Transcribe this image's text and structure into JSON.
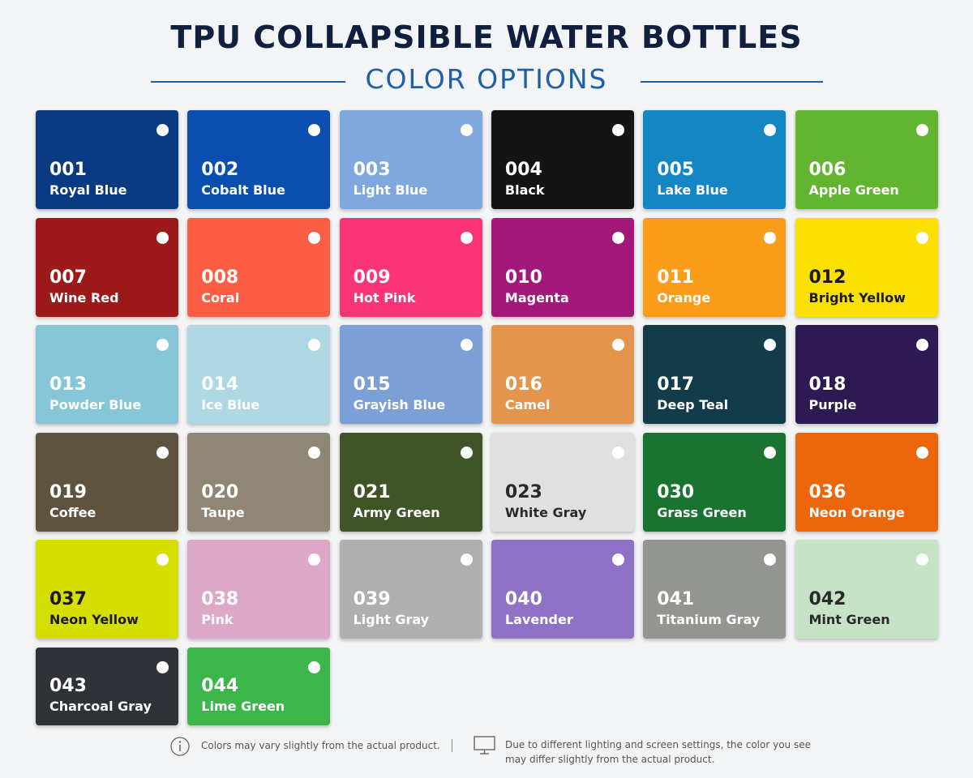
{
  "header": {
    "title": "TPU COLLAPSIBLE WATER BOTTLES",
    "subtitle": "COLOR OPTIONS"
  },
  "swatches": [
    {
      "code": "001",
      "name": "Royal Blue",
      "color": "#0a3a82",
      "text_color": "#ffffff"
    },
    {
      "code": "002",
      "name": "Cobalt Blue",
      "color": "#0a4fb0",
      "text_color": "#ffffff"
    },
    {
      "code": "003",
      "name": "Light Blue",
      "color": "#80a8de",
      "text_color": "#ffffff"
    },
    {
      "code": "004",
      "name": "Black",
      "color": "#141414",
      "text_color": "#ffffff"
    },
    {
      "code": "005",
      "name": "Lake Blue",
      "color": "#1486c4",
      "text_color": "#ffffff"
    },
    {
      "code": "006",
      "name": "Apple Green",
      "color": "#62b531",
      "text_color": "#ffffff"
    },
    {
      "code": "007",
      "name": "Wine Red",
      "color": "#9c1a1a",
      "text_color": "#ffffff"
    },
    {
      "code": "008",
      "name": "Coral",
      "color": "#fb5e45",
      "text_color": "#ffffff"
    },
    {
      "code": "009",
      "name": "Hot Pink",
      "color": "#fb3478",
      "text_color": "#ffffff"
    },
    {
      "code": "010",
      "name": "Magenta",
      "color": "#a3197a",
      "text_color": "#ffffff"
    },
    {
      "code": "011",
      "name": "Orange",
      "color": "#fb9c1a",
      "text_color": "#ffffff"
    },
    {
      "code": "012",
      "name": "Bright Yellow",
      "color": "#fbe000",
      "text_color": "#1a1a1a"
    },
    {
      "code": "013",
      "name": "Powder Blue",
      "color": "#86c6d6",
      "text_color": "#ffffff"
    },
    {
      "code": "014",
      "name": "Ice Blue",
      "color": "#aed8e4",
      "text_color": "#ffffff"
    },
    {
      "code": "015",
      "name": "Grayish Blue",
      "color": "#7ca0d6",
      "text_color": "#ffffff"
    },
    {
      "code": "016",
      "name": "Camel",
      "color": "#e3954e",
      "text_color": "#ffffff"
    },
    {
      "code": "017",
      "name": "Deep Teal",
      "color": "#123c4a",
      "text_color": "#ffffff"
    },
    {
      "code": "018",
      "name": "Purple",
      "color": "#2d1a52",
      "text_color": "#ffffff"
    },
    {
      "code": "019",
      "name": "Coffee",
      "color": "#5f5340",
      "text_color": "#ffffff"
    },
    {
      "code": "020",
      "name": "Taupe",
      "color": "#8f8676",
      "text_color": "#ffffff"
    },
    {
      "code": "021",
      "name": "Army Green",
      "color": "#3f5427",
      "text_color": "#ffffff"
    },
    {
      "code": "023",
      "name": "White Gray",
      "color": "#e0e0e0",
      "text_color": "#2a2a2a"
    },
    {
      "code": "030",
      "name": "Grass Green",
      "color": "#1a7330",
      "text_color": "#ffffff"
    },
    {
      "code": "036",
      "name": "Neon Orange",
      "color": "#ec670c",
      "text_color": "#ffffff"
    },
    {
      "code": "037",
      "name": "Neon Yellow",
      "color": "#d5de00",
      "text_color": "#1a1a1a"
    },
    {
      "code": "038",
      "name": "Pink",
      "color": "#dca8c8",
      "text_color": "#ffffff"
    },
    {
      "code": "039",
      "name": "Light Gray",
      "color": "#afafaf",
      "text_color": "#ffffff"
    },
    {
      "code": "040",
      "name": "Lavender",
      "color": "#8f72c6",
      "text_color": "#ffffff"
    },
    {
      "code": "041",
      "name": "Titanium Gray",
      "color": "#929590",
      "text_color": "#ffffff"
    },
    {
      "code": "042",
      "name": "Mint Green",
      "color": "#c6e3c6",
      "text_color": "#2a2a2a"
    },
    {
      "code": "043",
      "name": "Charcoal Gray",
      "color": "#2f3236",
      "text_color": "#ffffff"
    },
    {
      "code": "044",
      "name": "Lime Green",
      "color": "#3cb64a",
      "text_color": "#ffffff"
    }
  ],
  "footer": {
    "note1": "Colors may vary slightly from the actual product.",
    "note2": "Due to different lighting and screen settings, the color you see may differ slightly from the actual product."
  }
}
